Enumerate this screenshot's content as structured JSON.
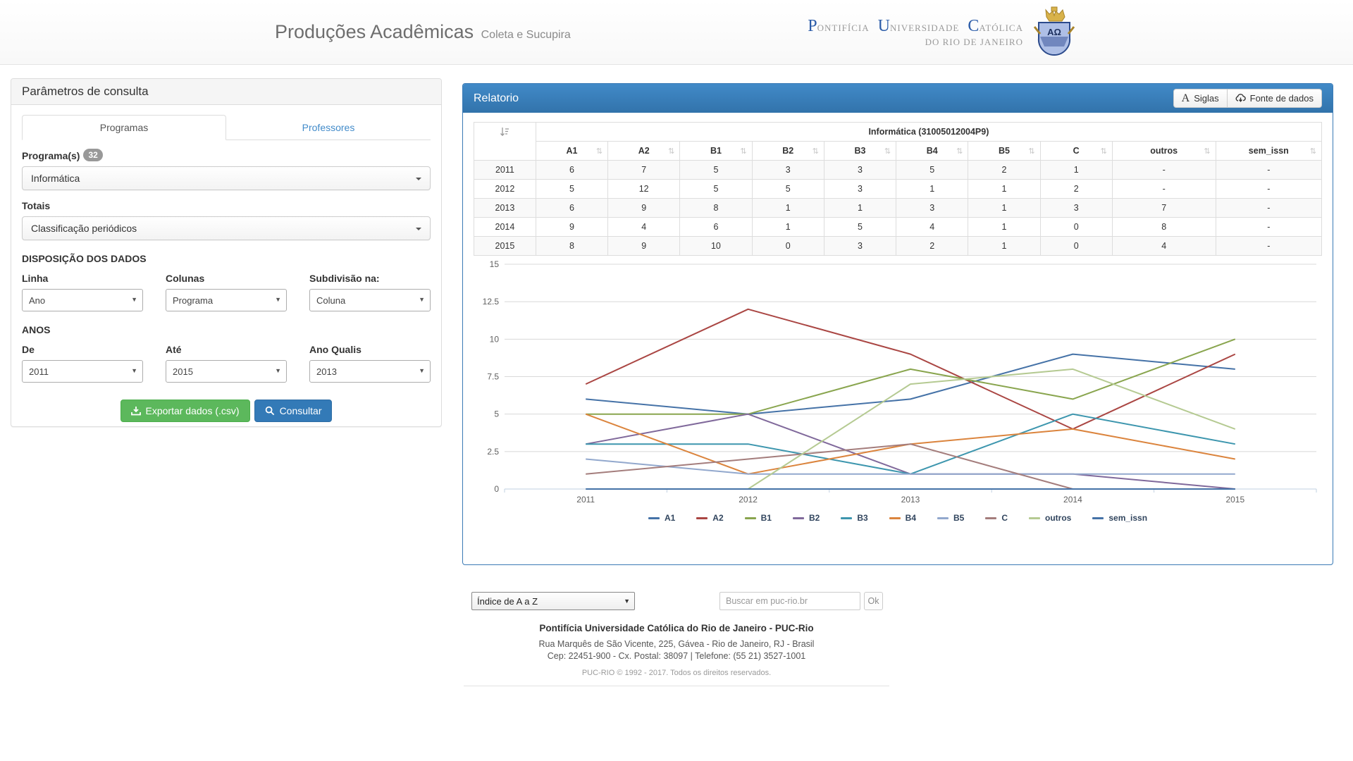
{
  "header": {
    "title": "Produções Acadêmicas",
    "subtitle": "Coleta e Sucupira",
    "logo": {
      "words": [
        {
          "init": "P",
          "rest": "ontifícia"
        },
        {
          "init": "U",
          "rest": "niversidade"
        },
        {
          "init": "C",
          "rest": "atólica"
        }
      ],
      "line2": "do Rio de Janeiro",
      "crest_text": "ΑΩ"
    }
  },
  "params_panel": {
    "title": "Parâmetros de consulta",
    "tabs": [
      {
        "label": "Programas",
        "active": true
      },
      {
        "label": "Professores",
        "active": false
      }
    ],
    "programas": {
      "label": "Programa(s)",
      "badge": "32",
      "value": "Informática"
    },
    "totais": {
      "label": "Totais",
      "value": "Classificação periódicos"
    },
    "disposicao": {
      "title": "DISPOSIÇÃO DOS DADOS",
      "fields": [
        {
          "label": "Linha",
          "value": "Ano"
        },
        {
          "label": "Colunas",
          "value": "Programa"
        },
        {
          "label": "Subdivisão na:",
          "value": "Coluna"
        }
      ]
    },
    "anos": {
      "title": "ANOS",
      "fields": [
        {
          "label": "De",
          "value": "2011"
        },
        {
          "label": "Até",
          "value": "2015"
        },
        {
          "label": "Ano Qualis",
          "value": "2013"
        }
      ]
    },
    "buttons": {
      "export": "Exportar dados (.csv)",
      "consult": "Consultar"
    }
  },
  "report_panel": {
    "title": "Relatorio",
    "buttons": {
      "siglas": "Siglas",
      "fonte": "Fonte de dados"
    },
    "table": {
      "group_header": "Informática (31005012004P9)",
      "columns": [
        "A1",
        "A2",
        "B1",
        "B2",
        "B3",
        "B4",
        "B5",
        "C",
        "outros",
        "sem_issn"
      ],
      "rows": [
        {
          "year": "2011",
          "values": [
            "6",
            "7",
            "5",
            "3",
            "3",
            "5",
            "2",
            "1",
            "-",
            "-"
          ]
        },
        {
          "year": "2012",
          "values": [
            "5",
            "12",
            "5",
            "5",
            "3",
            "1",
            "1",
            "2",
            "-",
            "-"
          ]
        },
        {
          "year": "2013",
          "values": [
            "6",
            "9",
            "8",
            "1",
            "1",
            "3",
            "1",
            "3",
            "7",
            "-"
          ]
        },
        {
          "year": "2014",
          "values": [
            "9",
            "4",
            "6",
            "1",
            "5",
            "4",
            "1",
            "0",
            "8",
            "-"
          ]
        },
        {
          "year": "2015",
          "values": [
            "8",
            "9",
            "10",
            "0",
            "3",
            "2",
            "1",
            "0",
            "4",
            "-"
          ]
        }
      ]
    }
  },
  "chart_data": {
    "type": "line",
    "x": [
      "2011",
      "2012",
      "2013",
      "2014",
      "2015"
    ],
    "series": [
      {
        "name": "A1",
        "color": "#4572A7",
        "values": [
          6,
          5,
          6,
          9,
          8
        ]
      },
      {
        "name": "A2",
        "color": "#AA4643",
        "values": [
          7,
          12,
          9,
          4,
          9
        ]
      },
      {
        "name": "B1",
        "color": "#89A54E",
        "values": [
          5,
          5,
          8,
          6,
          10
        ]
      },
      {
        "name": "B2",
        "color": "#80699B",
        "values": [
          3,
          5,
          1,
          1,
          0
        ]
      },
      {
        "name": "B3",
        "color": "#3D96AE",
        "values": [
          3,
          3,
          1,
          5,
          3
        ]
      },
      {
        "name": "B4",
        "color": "#DB843D",
        "values": [
          5,
          1,
          3,
          4,
          2
        ]
      },
      {
        "name": "B5",
        "color": "#92A8CD",
        "values": [
          2,
          1,
          1,
          1,
          1
        ]
      },
      {
        "name": "C",
        "color": "#A47D7C",
        "values": [
          1,
          2,
          3,
          0,
          0
        ]
      },
      {
        "name": "outros",
        "color": "#B5CA92",
        "values": [
          null,
          0,
          7,
          8,
          4
        ]
      },
      {
        "name": "sem_issn",
        "color": "#4572A7",
        "values": [
          0,
          0,
          0,
          0,
          0
        ]
      }
    ],
    "ylim": [
      0,
      15
    ],
    "yticks": [
      0,
      2.5,
      5,
      7.5,
      10,
      12.5,
      15
    ],
    "grid": true,
    "legend_position": "bottom"
  },
  "search_bar": {
    "index_select_value": "Índice de A a Z",
    "search_placeholder": "Buscar em puc-rio.br",
    "ok_label": "Ok"
  },
  "footer": {
    "line1": "Pontifícia Universidade Católica do Rio de Janeiro - PUC-Rio",
    "line2": "Rua Marquês de São Vicente, 225, Gávea - Rio de Janeiro, RJ - Brasil",
    "line3": "Cep: 22451-900 - Cx. Postal: 38097 | Telefone: (55 21) 3527-1001",
    "line4": "PUC-RIO © 1992 - 2017. Todos os direitos reservados."
  },
  "icons": {
    "sort": "⇅",
    "select_arrow": "▼"
  },
  "colors": {
    "panel_header_blue": "#428bca",
    "button_green": "#5cb85c",
    "button_blue": "#337ab7",
    "grid_line": "#d8d8d8",
    "axis_line": "#c0d0e0",
    "axis_text": "#606060"
  }
}
